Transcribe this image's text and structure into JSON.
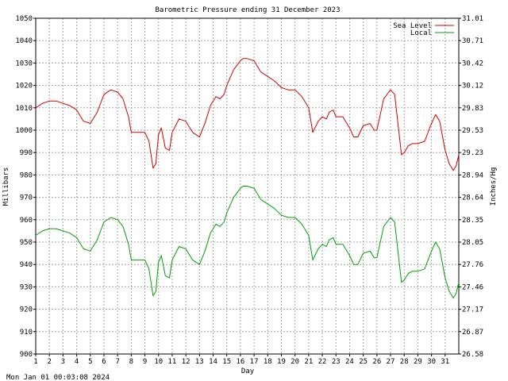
{
  "chart_data": {
    "type": "line",
    "title": "Barometric Pressure ending 31 December 2023",
    "xlabel": "Day",
    "ylabel": "Millibars",
    "ylabel_right": "Inches/Hg",
    "footer": "Mon Jan 01 00:03:08 2024",
    "xlim": [
      1,
      32
    ],
    "ylim": [
      900,
      1050
    ],
    "x_ticks": [
      1,
      2,
      3,
      4,
      5,
      6,
      7,
      8,
      9,
      10,
      11,
      12,
      13,
      14,
      15,
      16,
      17,
      18,
      19,
      20,
      21,
      22,
      23,
      24,
      25,
      26,
      27,
      28,
      29,
      30,
      31
    ],
    "y_ticks": [
      900,
      910,
      920,
      930,
      940,
      950,
      960,
      970,
      980,
      990,
      1000,
      1010,
      1020,
      1030,
      1040,
      1050
    ],
    "y_ticks_right": [
      "26.58",
      "26.87",
      "27.17",
      "27.46",
      "27.76",
      "28.05",
      "28.35",
      "28.64",
      "28.94",
      "29.23",
      "29.53",
      "29.83",
      "30.12",
      "30.42",
      "30.71",
      "31.01"
    ],
    "grid": true,
    "legend_position": "top-right",
    "series": [
      {
        "name": "Sea Level",
        "color": "#d00000",
        "x": [
          1.0,
          1.5,
          2.0,
          2.5,
          3.0,
          3.5,
          4.0,
          4.5,
          5.0,
          5.5,
          6.0,
          6.5,
          7.0,
          7.4,
          7.8,
          8.0,
          8.5,
          9.0,
          9.3,
          9.6,
          9.8,
          10.0,
          10.2,
          10.5,
          10.8,
          11.0,
          11.5,
          12.0,
          12.5,
          13.0,
          13.4,
          13.8,
          14.2,
          14.5,
          14.8,
          15.0,
          15.5,
          16.0,
          16.2,
          16.5,
          17.0,
          17.5,
          18.0,
          18.5,
          19.0,
          19.5,
          20.0,
          20.5,
          21.0,
          21.3,
          21.7,
          22.0,
          22.3,
          22.5,
          22.8,
          23.0,
          23.5,
          24.0,
          24.3,
          24.6,
          25.0,
          25.5,
          25.8,
          26.0,
          26.5,
          27.0,
          27.3,
          27.6,
          27.8,
          28.0,
          28.3,
          28.6,
          29.0,
          29.5,
          30.0,
          30.3,
          30.6,
          31.0,
          31.3,
          31.6,
          31.8,
          32.0
        ],
        "values": [
          1010,
          1012,
          1013,
          1013,
          1012,
          1011,
          1009,
          1004,
          1003,
          1008,
          1016,
          1018,
          1017,
          1014,
          1006,
          999,
          999,
          999,
          995,
          983,
          985,
          998,
          1001,
          992,
          991,
          999,
          1005,
          1004,
          999,
          997,
          1003,
          1011,
          1015,
          1014,
          1016,
          1020,
          1027,
          1031,
          1032,
          1032,
          1031,
          1026,
          1024,
          1022,
          1019,
          1018,
          1018,
          1015,
          1010,
          999,
          1004,
          1006,
          1005,
          1008,
          1009,
          1006,
          1006,
          1001,
          997,
          997,
          1002,
          1003,
          1000,
          1000,
          1014,
          1018,
          1016,
          1000,
          989,
          990,
          993,
          994,
          994,
          995,
          1003,
          1007,
          1004,
          991,
          985,
          982,
          984,
          989
        ]
      },
      {
        "name": "Local",
        "color": "#00a000",
        "x": [
          1.0,
          1.5,
          2.0,
          2.5,
          3.0,
          3.5,
          4.0,
          4.5,
          5.0,
          5.5,
          6.0,
          6.5,
          7.0,
          7.4,
          7.8,
          8.0,
          8.5,
          9.0,
          9.3,
          9.6,
          9.8,
          10.0,
          10.2,
          10.5,
          10.8,
          11.0,
          11.5,
          12.0,
          12.5,
          13.0,
          13.4,
          13.8,
          14.2,
          14.5,
          14.8,
          15.0,
          15.5,
          16.0,
          16.2,
          16.5,
          17.0,
          17.5,
          18.0,
          18.5,
          19.0,
          19.5,
          20.0,
          20.5,
          21.0,
          21.3,
          21.7,
          22.0,
          22.3,
          22.5,
          22.8,
          23.0,
          23.5,
          24.0,
          24.3,
          24.6,
          25.0,
          25.5,
          25.8,
          26.0,
          26.5,
          27.0,
          27.3,
          27.6,
          27.8,
          28.0,
          28.3,
          28.6,
          29.0,
          29.5,
          30.0,
          30.3,
          30.6,
          31.0,
          31.3,
          31.6,
          31.8,
          32.0
        ],
        "values": [
          953,
          955,
          956,
          956,
          955,
          954,
          952,
          947,
          946,
          951,
          959,
          961,
          960,
          957,
          949,
          942,
          942,
          942,
          938,
          926,
          928,
          941,
          944,
          935,
          934,
          942,
          948,
          947,
          942,
          940,
          946,
          954,
          958,
          957,
          959,
          963,
          970,
          974,
          975,
          975,
          974,
          969,
          967,
          965,
          962,
          961,
          961,
          958,
          953,
          942,
          947,
          949,
          948,
          951,
          952,
          949,
          949,
          944,
          940,
          940,
          945,
          946,
          943,
          943,
          957,
          961,
          959,
          943,
          932,
          933,
          936,
          937,
          937,
          938,
          946,
          950,
          947,
          934,
          928,
          925,
          927,
          932
        ]
      }
    ]
  }
}
